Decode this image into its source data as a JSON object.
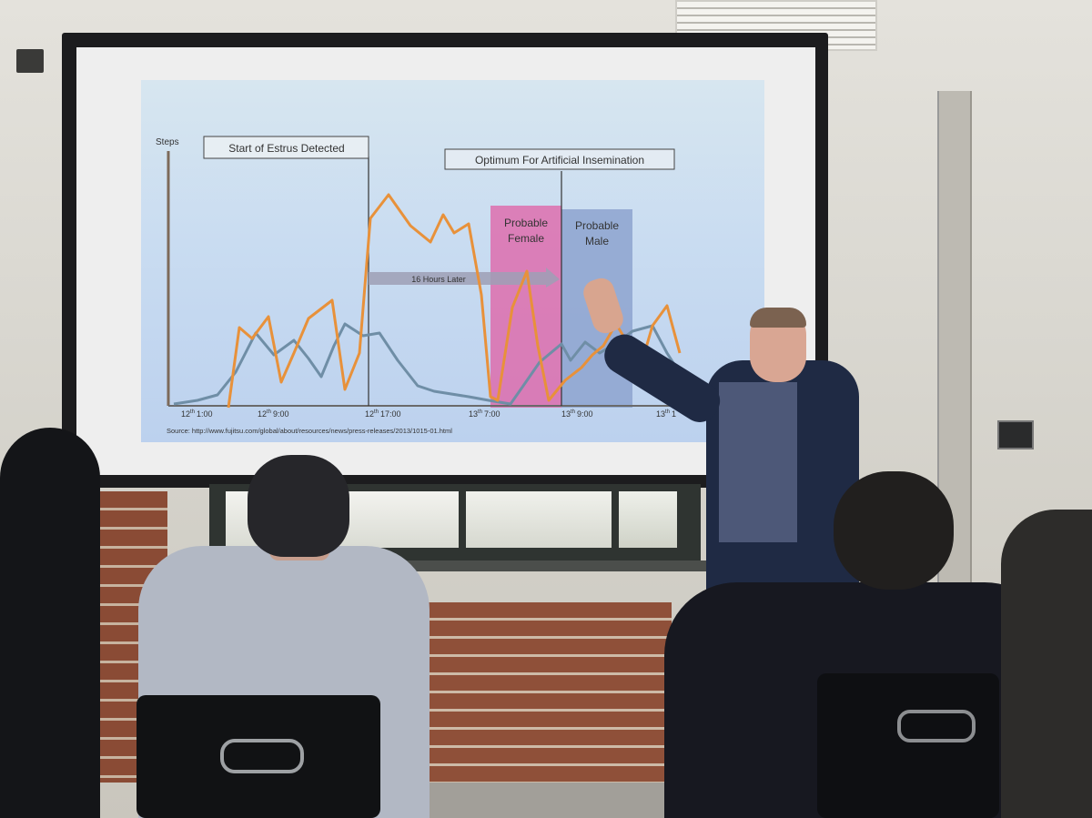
{
  "slide": {
    "y_axis_label": "Steps",
    "label_estrus": "Start of Estrus Detected",
    "label_insemination": "Optimum For Artificial Insemination",
    "arrow_label": "16 Hours Later",
    "region_female_line1": "Probable",
    "region_female_line2": "Female",
    "region_male_line1": "Probable",
    "region_male_line2": "Male",
    "tick_labels": [
      {
        "day": "12",
        "sup": "th",
        "time": "1:00"
      },
      {
        "day": "12",
        "sup": "th",
        "time": "9:00"
      },
      {
        "day": "12",
        "sup": "th",
        "time": "17:00"
      },
      {
        "day": "13",
        "sup": "th",
        "time": "7:00"
      },
      {
        "day": "13",
        "sup": "th",
        "time": "9:00"
      },
      {
        "day": "13",
        "sup": "th",
        "time": "1"
      }
    ],
    "source": "Source: http://www.fujitsu.com/global/about/resources/news/press-releases/2013/1015-01.html",
    "colors": {
      "steps_series": "#e8913a",
      "activity_series": "#6f8ea6",
      "female_region": "#e05fa4",
      "male_region": "#8da3cf"
    }
  }
}
